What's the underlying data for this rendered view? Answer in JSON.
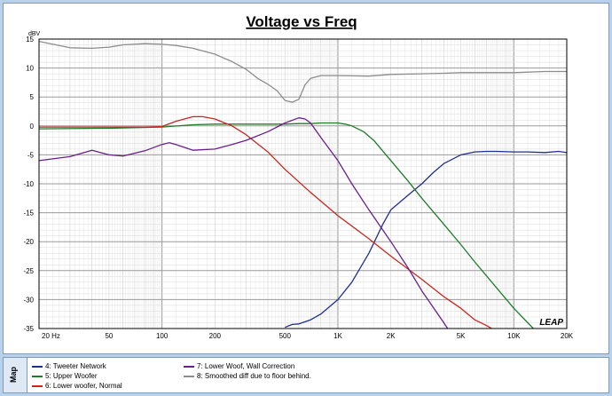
{
  "chart_data": {
    "type": "line",
    "title": "Voltage vs Freq",
    "ylabel": "dBV",
    "x_scale": "log",
    "xlim": [
      20,
      20000
    ],
    "ylim": [
      -35,
      15
    ],
    "grid": true,
    "x_tick_labels": [
      "20 Hz",
      "50",
      "100",
      "200",
      "500",
      "1K",
      "2K",
      "5K",
      "10K",
      "20K"
    ],
    "x_tick_values": [
      20,
      50,
      100,
      200,
      500,
      1000,
      2000,
      5000,
      10000,
      20000
    ],
    "y_ticks": [
      15,
      10,
      5,
      0,
      -5,
      -10,
      -15,
      -20,
      -25,
      -30,
      -35
    ],
    "watermark": "LEAP",
    "series": [
      {
        "name": "4: Tweeter Network",
        "color": "#1f2f8f",
        "x": [
          500,
          550,
          600,
          700,
          800,
          1000,
          1200,
          1500,
          1800,
          2000,
          2500,
          3000,
          3500,
          4000,
          5000,
          6000,
          7000,
          8000,
          10000,
          12000,
          15000,
          18000,
          20000
        ],
        "y": [
          -34.8,
          -34.3,
          -34.2,
          -33.5,
          -32.5,
          -30,
          -27,
          -22,
          -17,
          -14.5,
          -12,
          -10,
          -8,
          -6.5,
          -5,
          -4.5,
          -4.4,
          -4.4,
          -4.5,
          -4.5,
          -4.6,
          -4.4,
          -4.6
        ]
      },
      {
        "name": "5: Upper Woofer",
        "color": "#1e7b2a",
        "x": [
          20,
          50,
          100,
          150,
          200,
          300,
          400,
          500,
          600,
          700,
          800,
          1000,
          1100,
          1200,
          1400,
          1600,
          2000,
          2500,
          3000,
          4000,
          5000,
          6000,
          8000,
          10000,
          12000,
          15000
        ],
        "y": [
          -0.5,
          -0.4,
          -0.2,
          0.2,
          0.3,
          0.3,
          0.3,
          0.3,
          0.4,
          0.4,
          0.5,
          0.5,
          0.3,
          0,
          -1,
          -2.5,
          -6,
          -9.5,
          -12.5,
          -17,
          -20.5,
          -23.5,
          -28,
          -31.5,
          -34,
          -37
        ]
      },
      {
        "name": "6: Lower woofer, Normal",
        "color": "#c8261e",
        "x": [
          20,
          50,
          80,
          100,
          120,
          150,
          170,
          200,
          250,
          300,
          400,
          500,
          700,
          1000,
          1500,
          2000,
          3000,
          4000,
          5000,
          6000,
          7000,
          8000,
          10000
        ],
        "y": [
          -0.2,
          -0.2,
          -0.2,
          -0.1,
          0.8,
          1.6,
          1.6,
          1.2,
          0,
          -1.5,
          -4.5,
          -7.5,
          -11.5,
          -15.5,
          -19.5,
          -22.5,
          -26.5,
          -29.5,
          -31.5,
          -33.5,
          -34.5,
          -35.5,
          -37
        ]
      },
      {
        "name": "7: Lower Woof, Wall Correction",
        "color": "#6a1e8c",
        "x": [
          20,
          30,
          40,
          50,
          60,
          80,
          100,
          110,
          120,
          150,
          200,
          250,
          300,
          400,
          500,
          600,
          650,
          700,
          800,
          1000,
          1200,
          1500,
          2000,
          2500,
          3000,
          4000,
          5000
        ],
        "y": [
          -6,
          -5.3,
          -4.2,
          -5,
          -5.2,
          -4.3,
          -3.2,
          -2.9,
          -3.2,
          -4.2,
          -4,
          -3.2,
          -2.5,
          -1,
          0.5,
          1.4,
          1.2,
          0.5,
          -2,
          -6,
          -10,
          -14.5,
          -20,
          -24.5,
          -28.5,
          -34,
          -38.5
        ]
      },
      {
        "name": "8: Smoothed diff due to floor behind.",
        "color": "#8c8c8c",
        "x": [
          20,
          30,
          40,
          50,
          60,
          80,
          100,
          120,
          150,
          200,
          250,
          300,
          350,
          400,
          450,
          500,
          550,
          600,
          650,
          700,
          800,
          1000,
          1500,
          2000,
          3000,
          4000,
          5000,
          7000,
          10000,
          15000,
          20000
        ],
        "y": [
          14.6,
          13.5,
          13.4,
          13.6,
          14,
          14.2,
          14.1,
          13.9,
          13.4,
          12.4,
          11.1,
          9.8,
          8.2,
          7.2,
          6.1,
          4.4,
          4.1,
          4.6,
          7.1,
          8.2,
          8.7,
          8.7,
          8.6,
          8.9,
          9,
          9.1,
          9.2,
          9.2,
          9.2,
          9.4,
          9.4
        ]
      }
    ]
  }
}
